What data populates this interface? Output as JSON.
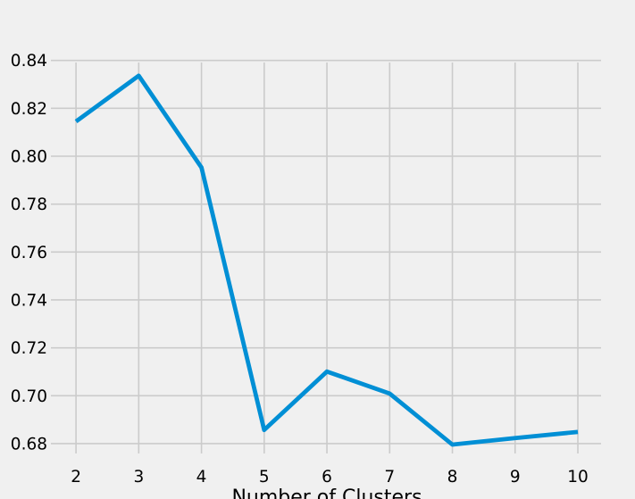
{
  "chart_data": {
    "type": "line",
    "title": "",
    "xlabel": "Number of Clusters",
    "ylabel": "",
    "x": [
      2,
      3,
      4,
      5,
      6,
      7,
      8,
      9,
      10
    ],
    "series": [
      {
        "values": [
          0.8145,
          0.8336,
          0.7953,
          0.6857,
          0.7101,
          0.7009,
          0.6796,
          0.6823,
          0.6849
        ],
        "color": "#008fd5"
      }
    ],
    "xticks": [
      2,
      3,
      4,
      5,
      6,
      7,
      8,
      9,
      10
    ],
    "xtick_labels": [
      "2",
      "3",
      "4",
      "5",
      "6",
      "7",
      "8",
      "9",
      "10"
    ],
    "yticks": [
      0.68,
      0.7,
      0.72,
      0.74,
      0.76,
      0.78,
      0.8,
      0.82,
      0.84
    ],
    "ytick_labels": [
      "0.68",
      "0.70",
      "0.72",
      "0.74",
      "0.76",
      "0.78",
      "0.80",
      "0.82",
      "0.84"
    ],
    "xlim": [
      1.6,
      10.37
    ],
    "ylim": [
      0.6744,
      0.8436
    ],
    "grid": true,
    "background_color": "#f0f0f0",
    "grid_color": "#cbcbcb"
  }
}
